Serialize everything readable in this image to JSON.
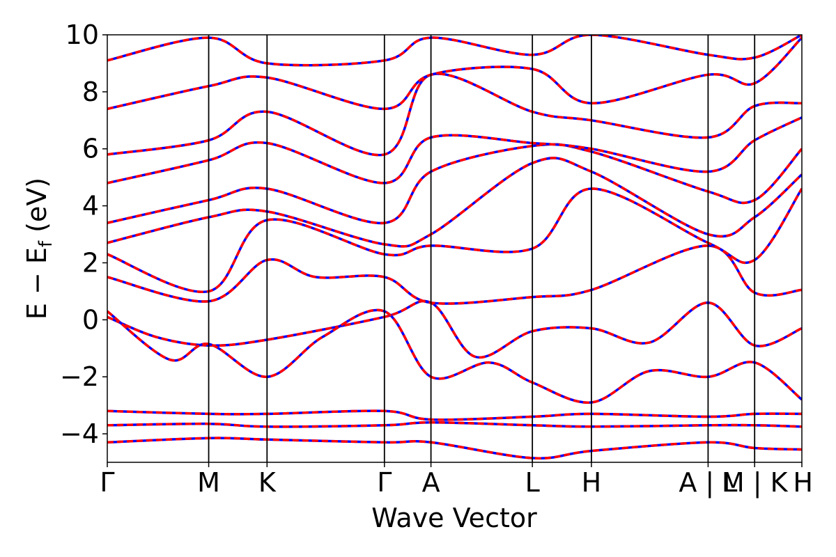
{
  "chart_data": {
    "type": "line",
    "title": "",
    "xlabel": "Wave Vector",
    "ylabel": "E − E_f (eV)",
    "ylabel_main": "E − E",
    "ylabel_sub": "f",
    "ylabel_units": " (eV)",
    "ylim": [
      -5,
      10
    ],
    "xlim": [
      0,
      1
    ],
    "grid": false,
    "legend": "none",
    "y_ticks": [
      {
        "value": -4,
        "label": "−4"
      },
      {
        "value": -2,
        "label": "−2"
      },
      {
        "value": 0,
        "label": "0"
      },
      {
        "value": 2,
        "label": "2"
      },
      {
        "value": 4,
        "label": "4"
      },
      {
        "value": 6,
        "label": "6"
      },
      {
        "value": 8,
        "label": "8"
      },
      {
        "value": 10,
        "label": "10"
      }
    ],
    "k_points": [
      {
        "label": "Γ",
        "x": 0.0
      },
      {
        "label": "M",
        "x": 0.146
      },
      {
        "label": "K",
        "x": 0.23
      },
      {
        "label": "Γ",
        "x": 0.399
      },
      {
        "label": "A",
        "x": 0.466
      },
      {
        "label": "L",
        "x": 0.612
      },
      {
        "label": "H",
        "x": 0.697
      },
      {
        "label": "A | L",
        "x": 0.865
      },
      {
        "label": "M | K",
        "x": 0.932
      },
      {
        "label": "H",
        "x": 1.0
      }
    ],
    "colors": {
      "series_a": "#ff0000",
      "series_b": "#0000ff"
    },
    "series": [
      {
        "id": "b1",
        "values": [
          [
            0,
            -4.3
          ],
          [
            0.146,
            -4.15
          ],
          [
            0.23,
            -4.2
          ],
          [
            0.399,
            -4.3
          ],
          [
            0.466,
            -4.3
          ],
          [
            0.612,
            -4.85
          ],
          [
            0.697,
            -4.6
          ],
          [
            0.865,
            -4.3
          ],
          [
            0.932,
            -4.5
          ],
          [
            1.0,
            -4.55
          ]
        ]
      },
      {
        "id": "b2",
        "values": [
          [
            0,
            -3.7
          ],
          [
            0.146,
            -3.65
          ],
          [
            0.23,
            -3.75
          ],
          [
            0.399,
            -3.7
          ],
          [
            0.466,
            -3.6
          ],
          [
            0.612,
            -3.7
          ],
          [
            0.697,
            -3.75
          ],
          [
            0.865,
            -3.7
          ],
          [
            0.932,
            -3.7
          ],
          [
            1.0,
            -3.75
          ]
        ]
      },
      {
        "id": "b3",
        "values": [
          [
            0,
            -3.2
          ],
          [
            0.146,
            -3.3
          ],
          [
            0.23,
            -3.3
          ],
          [
            0.399,
            -3.2
          ],
          [
            0.466,
            -3.5
          ],
          [
            0.612,
            -3.4
          ],
          [
            0.697,
            -3.3
          ],
          [
            0.865,
            -3.4
          ],
          [
            0.932,
            -3.3
          ],
          [
            1.0,
            -3.3
          ]
        ]
      },
      {
        "id": "b4",
        "values": [
          [
            0,
            0.1
          ],
          [
            0.07,
            -0.6
          ],
          [
            0.146,
            -0.9
          ],
          [
            0.23,
            -0.7
          ],
          [
            0.399,
            0.1
          ],
          [
            0.466,
            0.6
          ],
          [
            0.53,
            -1.3
          ],
          [
            0.612,
            -0.4
          ],
          [
            0.697,
            -0.3
          ],
          [
            0.78,
            -0.8
          ],
          [
            0.865,
            0.6
          ],
          [
            0.932,
            -0.9
          ],
          [
            1.0,
            -0.3
          ]
        ]
      },
      {
        "id": "b5",
        "values": [
          [
            0,
            0.3
          ],
          [
            0.09,
            -1.4
          ],
          [
            0.146,
            -0.85
          ],
          [
            0.23,
            -2.0
          ],
          [
            0.31,
            -0.6
          ],
          [
            0.399,
            0.3
          ],
          [
            0.466,
            -2.0
          ],
          [
            0.55,
            -1.5
          ],
          [
            0.612,
            -2.2
          ],
          [
            0.697,
            -2.9
          ],
          [
            0.78,
            -1.8
          ],
          [
            0.865,
            -2.0
          ],
          [
            0.932,
            -1.5
          ],
          [
            1.0,
            -2.8
          ]
        ]
      },
      {
        "id": "b6",
        "values": [
          [
            0,
            1.5
          ],
          [
            0.146,
            0.65
          ],
          [
            0.23,
            2.1
          ],
          [
            0.3,
            1.5
          ],
          [
            0.399,
            1.5
          ],
          [
            0.466,
            0.6
          ],
          [
            0.612,
            0.8
          ],
          [
            0.697,
            1.05
          ],
          [
            0.865,
            2.6
          ],
          [
            0.932,
            0.95
          ],
          [
            1.0,
            1.05
          ]
        ]
      },
      {
        "id": "b7",
        "values": [
          [
            0,
            2.3
          ],
          [
            0.146,
            1.0
          ],
          [
            0.23,
            3.5
          ],
          [
            0.399,
            2.3
          ],
          [
            0.466,
            2.6
          ],
          [
            0.612,
            2.5
          ],
          [
            0.697,
            4.6
          ],
          [
            0.865,
            2.7
          ],
          [
            0.932,
            2.1
          ],
          [
            1.0,
            4.6
          ]
        ]
      },
      {
        "id": "b8",
        "values": [
          [
            0,
            2.7
          ],
          [
            0.146,
            3.6
          ],
          [
            0.23,
            3.8
          ],
          [
            0.399,
            2.65
          ],
          [
            0.466,
            3.0
          ],
          [
            0.612,
            5.5
          ],
          [
            0.697,
            5.2
          ],
          [
            0.865,
            3.0
          ],
          [
            0.932,
            3.6
          ],
          [
            1.0,
            5.1
          ]
        ]
      },
      {
        "id": "b9",
        "values": [
          [
            0,
            3.4
          ],
          [
            0.146,
            4.2
          ],
          [
            0.23,
            4.6
          ],
          [
            0.399,
            3.4
          ],
          [
            0.466,
            5.2
          ],
          [
            0.612,
            6.1
          ],
          [
            0.697,
            5.9
          ],
          [
            0.865,
            4.5
          ],
          [
            0.932,
            4.2
          ],
          [
            1.0,
            6.0
          ]
        ]
      },
      {
        "id": "b10",
        "values": [
          [
            0,
            4.8
          ],
          [
            0.146,
            5.6
          ],
          [
            0.23,
            6.2
          ],
          [
            0.399,
            4.8
          ],
          [
            0.466,
            6.4
          ],
          [
            0.612,
            6.2
          ],
          [
            0.697,
            6.0
          ],
          [
            0.865,
            5.2
          ],
          [
            0.932,
            6.3
          ],
          [
            1.0,
            7.1
          ]
        ]
      },
      {
        "id": "b11",
        "values": [
          [
            0,
            5.8
          ],
          [
            0.146,
            6.3
          ],
          [
            0.23,
            7.3
          ],
          [
            0.399,
            5.8
          ],
          [
            0.466,
            8.6
          ],
          [
            0.612,
            7.3
          ],
          [
            0.697,
            7.0
          ],
          [
            0.865,
            6.4
          ],
          [
            0.932,
            7.5
          ],
          [
            1.0,
            7.6
          ]
        ]
      },
      {
        "id": "b12",
        "values": [
          [
            0,
            7.4
          ],
          [
            0.146,
            8.2
          ],
          [
            0.23,
            8.5
          ],
          [
            0.399,
            7.4
          ],
          [
            0.466,
            8.6
          ],
          [
            0.612,
            8.8
          ],
          [
            0.697,
            7.6
          ],
          [
            0.865,
            8.6
          ],
          [
            0.932,
            8.3
          ],
          [
            1.0,
            9.9
          ]
        ]
      },
      {
        "id": "b13",
        "values": [
          [
            0,
            9.1
          ],
          [
            0.146,
            9.9
          ],
          [
            0.23,
            9.0
          ],
          [
            0.399,
            9.1
          ],
          [
            0.466,
            9.9
          ],
          [
            0.612,
            9.3
          ],
          [
            0.697,
            10.0
          ],
          [
            0.865,
            9.3
          ],
          [
            0.932,
            9.2
          ],
          [
            1.0,
            10.0
          ]
        ]
      }
    ]
  }
}
